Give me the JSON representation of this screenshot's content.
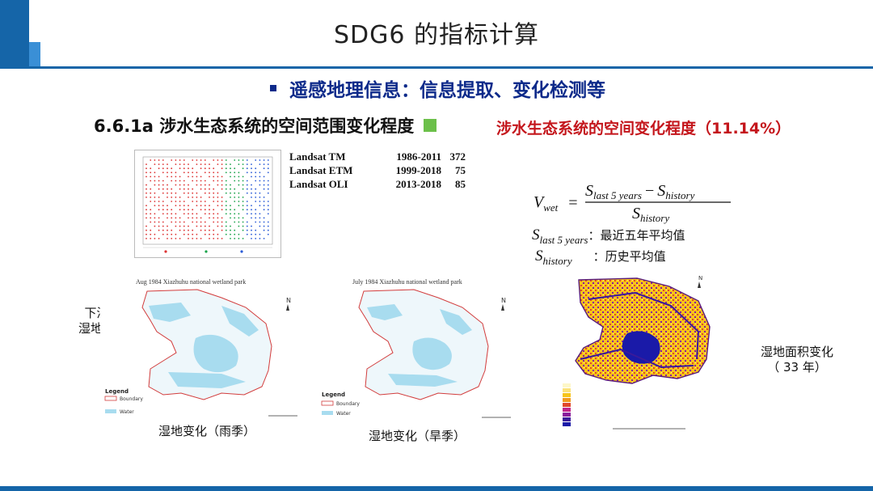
{
  "slide": {
    "title": "SDG6 的指标计算",
    "bullet": "遥感地理信息：信息提取、变化检测等",
    "section_heading": "6.6.1a 涉水生态系统的空间范围变化程度",
    "red_note": "涉水生态系统的空间变化程度（11.14%）"
  },
  "landsat": [
    {
      "sensor": "Landsat TM",
      "range": "1986-2011",
      "count": "372"
    },
    {
      "sensor": "Landsat ETM",
      "range": "1999-2018",
      "count": "75"
    },
    {
      "sensor": "Landsat OLI",
      "range": "2013-2018",
      "count": "85"
    }
  ],
  "formula": {
    "lhs": "V",
    "lhs_sub": "wet",
    "num_a": "S",
    "num_a_sub": "last 5 years",
    "minus": "−",
    "num_b": "S",
    "num_b_sub": "history",
    "den": "S",
    "den_sub": "history",
    "def1_sub": "last 5 years",
    "def1_text": "：最近五年平均值",
    "def2_sub": "history",
    "def2_text": "：历史平均值"
  },
  "maps": {
    "rainy_title": "Aug  1984  Xiazhuhu national wetland park",
    "dry_title": "July 1984  Xiazhuhu national wetland park",
    "legend_title": "Legend",
    "legend_boundary": "Boundary",
    "legend_water": "Water"
  },
  "labels": {
    "left_side_line1": "下渚湖",
    "left_side_line2": "湿地变化",
    "rainy_caption": "湿地变化（雨季）",
    "dry_caption": "湿地变化（旱季）",
    "right_side_line1": "湿地面积变化",
    "right_side_line2": "（ 33 年）"
  },
  "colors": {
    "brand_blue": "#1565a8",
    "heading_blue": "#0d2a8a",
    "alert_red": "#c4161c",
    "water": "#a8dcef",
    "boundary": "#d23c3c"
  }
}
